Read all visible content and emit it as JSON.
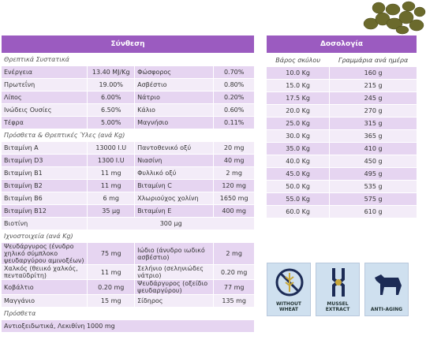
{
  "composition": {
    "title": "Σύνθεση",
    "sections": [
      {
        "title": "Θρεπτικά Συστατικά",
        "rows": [
          [
            "Ενέργεια",
            "13.40 MJ/Kg",
            "Φώσφορος",
            "0.70%"
          ],
          [
            "Πρωτεΐνη",
            "19.00%",
            "Ασβέστιο",
            "0.80%"
          ],
          [
            "Λίπος",
            "6.00%",
            "Νάτριο",
            "0.20%"
          ],
          [
            "Ινώδεις Ουσίες",
            "6.50%",
            "Κάλιο",
            "0.60%"
          ],
          [
            "Τέφρα",
            "5.00%",
            "Μαγνήσιο",
            "0.11%"
          ]
        ]
      },
      {
        "title": "Πρόσθετα & Θρεπτικές Ύλες (ανά Kg)",
        "rows": [
          [
            "Βιταμίνη A",
            "13000 I.U",
            "Παντοθενικό οξύ",
            "20 mg"
          ],
          [
            "Βιταμίνη D3",
            "1300 I.U",
            "Νιασίνη",
            "40 mg"
          ],
          [
            "Βιταμίνη B1",
            "11 mg",
            "Φυλλικό οξύ",
            "2 mg"
          ],
          [
            "Βιταμίνη B2",
            "11 mg",
            "Βιταμίνη C",
            "120 mg"
          ],
          [
            "Βιταμίνη B6",
            "6 mg",
            "Χλωριούχος χολίνη",
            "1650 mg"
          ],
          [
            "Βιταμίνη B12",
            "35 μg",
            "Βιταμίνη E",
            "400 mg"
          ],
          [
            "Βιοτίνη",
            "300 μg"
          ]
        ]
      },
      {
        "title": "Ιχνοστοιχεία (ανά Kg)",
        "rows": [
          [
            "Ψευδάργυρος (ένυδρο χηλικό σύμπλοκο ψευδαργύρου αμινοξέων)",
            "75 mg",
            "Ιώδιο (άνυδρο ιωδικό ασβέστιο)",
            "2 mg"
          ],
          [
            "Χαλκός (θειικό χαλκός, πενταϋδρίτη)",
            "11 mg",
            "Σελήνιο (σεληνιώδες νάτριο)",
            "0.20 mg"
          ],
          [
            "Κοβάλτιο",
            "0.20 mg",
            "Ψευδάργυρος (οξείδιο ψευδαργύρου)",
            "77 mg"
          ],
          [
            "Μαγγάνιο",
            "15 mg",
            "Σίδηρος",
            "135 mg"
          ]
        ]
      },
      {
        "title": "Πρόσθετα",
        "rows": [
          [
            "Αντιοξειδωτικά, Λεκιθίνη 1000 mg"
          ]
        ]
      }
    ]
  },
  "dosage": {
    "title": "Δοσολογία",
    "columns": [
      "Βάρος σκύλου",
      "Γραμμάρια ανά ημέρα"
    ],
    "rows": [
      [
        "10.0 Kg",
        "160 g"
      ],
      [
        "15.0 Kg",
        "215 g"
      ],
      [
        "17.5 Kg",
        "245 g"
      ],
      [
        "20.0 Kg",
        "270 g"
      ],
      [
        "25.0 Kg",
        "315 g"
      ],
      [
        "30.0 Kg",
        "365 g"
      ],
      [
        "35.0 Kg",
        "410 g"
      ],
      [
        "40.0 Kg",
        "450 g"
      ],
      [
        "45.0 Kg",
        "495 g"
      ],
      [
        "50.0 Kg",
        "535 g"
      ],
      [
        "55.0 Kg",
        "575 g"
      ],
      [
        "60.0 Kg",
        "610 g"
      ]
    ]
  },
  "icons": [
    {
      "label": "WITHOUT WHEAT"
    },
    {
      "label": "MUSSEL EXTRACT"
    },
    {
      "label": "ANTI-AGING"
    }
  ]
}
